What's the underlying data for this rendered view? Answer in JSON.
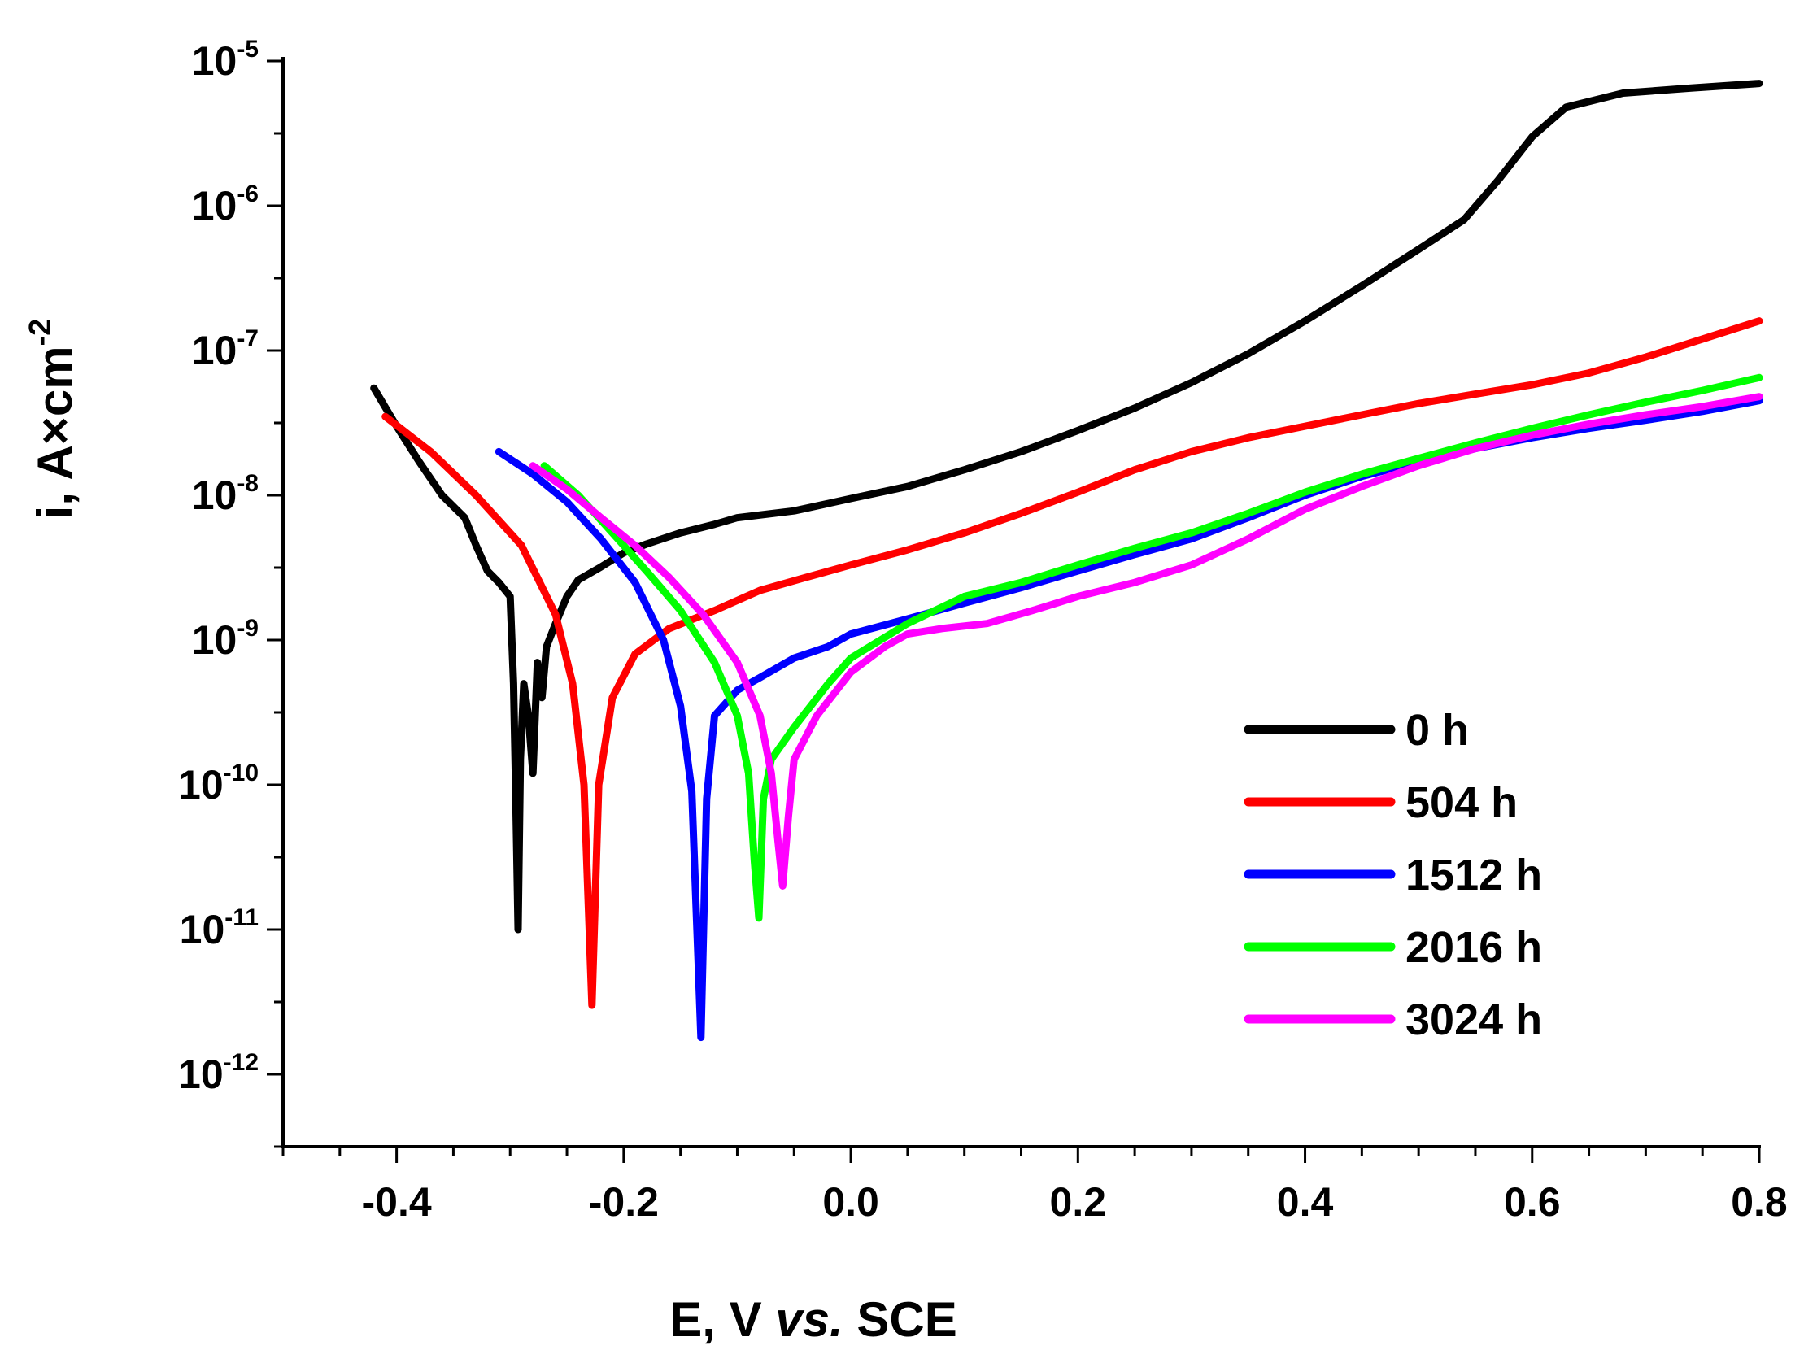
{
  "chart_data": {
    "type": "line",
    "xlabel_parts": [
      "E, V ",
      "vs.",
      " SCE"
    ],
    "ylabel_base": "i, A×cm",
    "ylabel_exp": "-2",
    "x_scale": "linear",
    "y_scale": "log",
    "xlim": [
      -0.5,
      0.8
    ],
    "ylim_exp": [
      -12.5,
      -5
    ],
    "x_ticks": [
      {
        "v": -0.4,
        "label": "-0.4"
      },
      {
        "v": -0.2,
        "label": "-0.2"
      },
      {
        "v": 0.0,
        "label": "0.0"
      },
      {
        "v": 0.2,
        "label": "0.2"
      },
      {
        "v": 0.4,
        "label": "0.4"
      },
      {
        "v": 0.6,
        "label": "0.6"
      },
      {
        "v": 0.8,
        "label": "0.8"
      }
    ],
    "y_ticks": [
      {
        "e": -5,
        "base": "10",
        "exp": "-5"
      },
      {
        "e": -6,
        "base": "10",
        "exp": "-6"
      },
      {
        "e": -7,
        "base": "10",
        "exp": "-7"
      },
      {
        "e": -8,
        "base": "10",
        "exp": "-8"
      },
      {
        "e": -9,
        "base": "10",
        "exp": "-9"
      },
      {
        "e": -10,
        "base": "10",
        "exp": "-10"
      },
      {
        "e": -11,
        "base": "10",
        "exp": "-11"
      },
      {
        "e": -12,
        "base": "10",
        "exp": "-12"
      }
    ],
    "legend_position": "lower-right",
    "grid": false,
    "series": [
      {
        "name": "0 h",
        "color": "#000000",
        "points": [
          [
            -0.42,
            5.5e-08
          ],
          [
            -0.4,
            3e-08
          ],
          [
            -0.38,
            1.7e-08
          ],
          [
            -0.36,
            1e-08
          ],
          [
            -0.34,
            7e-09
          ],
          [
            -0.33,
            4.5e-09
          ],
          [
            -0.32,
            3e-09
          ],
          [
            -0.31,
            2.5e-09
          ],
          [
            -0.3,
            2e-09
          ],
          [
            -0.297,
            5e-10
          ],
          [
            -0.295,
            8e-11
          ],
          [
            -0.293,
            1e-11
          ],
          [
            -0.291,
            1.5e-10
          ],
          [
            -0.288,
            5e-10
          ],
          [
            -0.284,
            3e-10
          ],
          [
            -0.28,
            1.2e-10
          ],
          [
            -0.276,
            7e-10
          ],
          [
            -0.272,
            4e-10
          ],
          [
            -0.268,
            9e-10
          ],
          [
            -0.26,
            1.3e-09
          ],
          [
            -0.25,
            2e-09
          ],
          [
            -0.24,
            2.6e-09
          ],
          [
            -0.22,
            3.2e-09
          ],
          [
            -0.2,
            4e-09
          ],
          [
            -0.18,
            4.6e-09
          ],
          [
            -0.15,
            5.5e-09
          ],
          [
            -0.12,
            6.3e-09
          ],
          [
            -0.1,
            7e-09
          ],
          [
            -0.05,
            7.8e-09
          ],
          [
            0.0,
            9.5e-09
          ],
          [
            0.05,
            1.15e-08
          ],
          [
            0.1,
            1.5e-08
          ],
          [
            0.15,
            2e-08
          ],
          [
            0.2,
            2.8e-08
          ],
          [
            0.25,
            4e-08
          ],
          [
            0.3,
            6e-08
          ],
          [
            0.35,
            9.5e-08
          ],
          [
            0.4,
            1.6e-07
          ],
          [
            0.45,
            2.8e-07
          ],
          [
            0.5,
            5e-07
          ],
          [
            0.54,
            8e-07
          ],
          [
            0.57,
            1.5e-06
          ],
          [
            0.6,
            3e-06
          ],
          [
            0.63,
            4.8e-06
          ],
          [
            0.68,
            6e-06
          ],
          [
            0.74,
            6.5e-06
          ],
          [
            0.8,
            7e-06
          ]
        ]
      },
      {
        "name": "504 h",
        "color": "#ff0000",
        "points": [
          [
            -0.41,
            3.5e-08
          ],
          [
            -0.37,
            2e-08
          ],
          [
            -0.33,
            1e-08
          ],
          [
            -0.29,
            4.5e-09
          ],
          [
            -0.26,
            1.5e-09
          ],
          [
            -0.245,
            5e-10
          ],
          [
            -0.235,
            1e-10
          ],
          [
            -0.228,
            3e-12
          ],
          [
            -0.222,
            1e-10
          ],
          [
            -0.21,
            4e-10
          ],
          [
            -0.19,
            8e-10
          ],
          [
            -0.16,
            1.2e-09
          ],
          [
            -0.12,
            1.6e-09
          ],
          [
            -0.08,
            2.2e-09
          ],
          [
            -0.04,
            2.7e-09
          ],
          [
            0.0,
            3.3e-09
          ],
          [
            0.05,
            4.2e-09
          ],
          [
            0.1,
            5.5e-09
          ],
          [
            0.15,
            7.5e-09
          ],
          [
            0.2,
            1.05e-08
          ],
          [
            0.25,
            1.5e-08
          ],
          [
            0.3,
            2e-08
          ],
          [
            0.35,
            2.5e-08
          ],
          [
            0.4,
            3e-08
          ],
          [
            0.45,
            3.6e-08
          ],
          [
            0.5,
            4.3e-08
          ],
          [
            0.55,
            5e-08
          ],
          [
            0.6,
            5.8e-08
          ],
          [
            0.65,
            7e-08
          ],
          [
            0.7,
            9e-08
          ],
          [
            0.75,
            1.2e-07
          ],
          [
            0.8,
            1.6e-07
          ]
        ]
      },
      {
        "name": "1512 h",
        "color": "#0000ff",
        "points": [
          [
            -0.31,
            2e-08
          ],
          [
            -0.28,
            1.4e-08
          ],
          [
            -0.25,
            9e-09
          ],
          [
            -0.22,
            5e-09
          ],
          [
            -0.19,
            2.5e-09
          ],
          [
            -0.165,
            1e-09
          ],
          [
            -0.15,
            3.5e-10
          ],
          [
            -0.14,
            9e-11
          ],
          [
            -0.132,
            1.8e-12
          ],
          [
            -0.127,
            8e-11
          ],
          [
            -0.12,
            3e-10
          ],
          [
            -0.1,
            4.5e-10
          ],
          [
            -0.08,
            5.5e-10
          ],
          [
            -0.05,
            7.5e-10
          ],
          [
            -0.02,
            9e-10
          ],
          [
            0.0,
            1.1e-09
          ],
          [
            0.05,
            1.4e-09
          ],
          [
            0.1,
            1.8e-09
          ],
          [
            0.15,
            2.3e-09
          ],
          [
            0.2,
            3e-09
          ],
          [
            0.25,
            3.9e-09
          ],
          [
            0.3,
            5e-09
          ],
          [
            0.35,
            7e-09
          ],
          [
            0.4,
            1e-08
          ],
          [
            0.45,
            1.35e-08
          ],
          [
            0.5,
            1.7e-08
          ],
          [
            0.55,
            2.1e-08
          ],
          [
            0.6,
            2.5e-08
          ],
          [
            0.65,
            2.9e-08
          ],
          [
            0.7,
            3.3e-08
          ],
          [
            0.75,
            3.8e-08
          ],
          [
            0.8,
            4.5e-08
          ]
        ]
      },
      {
        "name": "2016 h",
        "color": "#00ff00",
        "points": [
          [
            -0.27,
            1.6e-08
          ],
          [
            -0.24,
            1e-08
          ],
          [
            -0.21,
            5.5e-09
          ],
          [
            -0.18,
            3e-09
          ],
          [
            -0.15,
            1.6e-09
          ],
          [
            -0.12,
            7e-10
          ],
          [
            -0.1,
            3e-10
          ],
          [
            -0.09,
            1.2e-10
          ],
          [
            -0.085,
            3e-11
          ],
          [
            -0.081,
            1.2e-11
          ],
          [
            -0.077,
            8e-11
          ],
          [
            -0.07,
            1.5e-10
          ],
          [
            -0.05,
            2.5e-10
          ],
          [
            -0.02,
            5e-10
          ],
          [
            0.0,
            7.5e-10
          ],
          [
            0.05,
            1.3e-09
          ],
          [
            0.1,
            2e-09
          ],
          [
            0.15,
            2.5e-09
          ],
          [
            0.2,
            3.3e-09
          ],
          [
            0.25,
            4.3e-09
          ],
          [
            0.3,
            5.5e-09
          ],
          [
            0.35,
            7.5e-09
          ],
          [
            0.4,
            1.05e-08
          ],
          [
            0.45,
            1.4e-08
          ],
          [
            0.5,
            1.8e-08
          ],
          [
            0.55,
            2.3e-08
          ],
          [
            0.6,
            2.9e-08
          ],
          [
            0.65,
            3.6e-08
          ],
          [
            0.7,
            4.4e-08
          ],
          [
            0.75,
            5.3e-08
          ],
          [
            0.8,
            6.5e-08
          ]
        ]
      },
      {
        "name": "3024 h",
        "color": "#ff00ff",
        "points": [
          [
            -0.28,
            1.6e-08
          ],
          [
            -0.25,
            1.1e-08
          ],
          [
            -0.22,
            7e-09
          ],
          [
            -0.19,
            4.5e-09
          ],
          [
            -0.16,
            2.7e-09
          ],
          [
            -0.13,
            1.5e-09
          ],
          [
            -0.1,
            7e-10
          ],
          [
            -0.08,
            3e-10
          ],
          [
            -0.07,
            1.2e-10
          ],
          [
            -0.064,
            4e-11
          ],
          [
            -0.06,
            2e-11
          ],
          [
            -0.055,
            6e-11
          ],
          [
            -0.05,
            1.5e-10
          ],
          [
            -0.03,
            3e-10
          ],
          [
            0.0,
            6e-10
          ],
          [
            0.03,
            9e-10
          ],
          [
            0.05,
            1.1e-09
          ],
          [
            0.08,
            1.2e-09
          ],
          [
            0.12,
            1.3e-09
          ],
          [
            0.16,
            1.6e-09
          ],
          [
            0.2,
            2e-09
          ],
          [
            0.25,
            2.5e-09
          ],
          [
            0.3,
            3.3e-09
          ],
          [
            0.35,
            5e-09
          ],
          [
            0.4,
            8e-09
          ],
          [
            0.45,
            1.15e-08
          ],
          [
            0.5,
            1.6e-08
          ],
          [
            0.55,
            2.1e-08
          ],
          [
            0.6,
            2.6e-08
          ],
          [
            0.65,
            3.1e-08
          ],
          [
            0.7,
            3.6e-08
          ],
          [
            0.75,
            4.1e-08
          ],
          [
            0.8,
            4.8e-08
          ]
        ]
      }
    ]
  }
}
